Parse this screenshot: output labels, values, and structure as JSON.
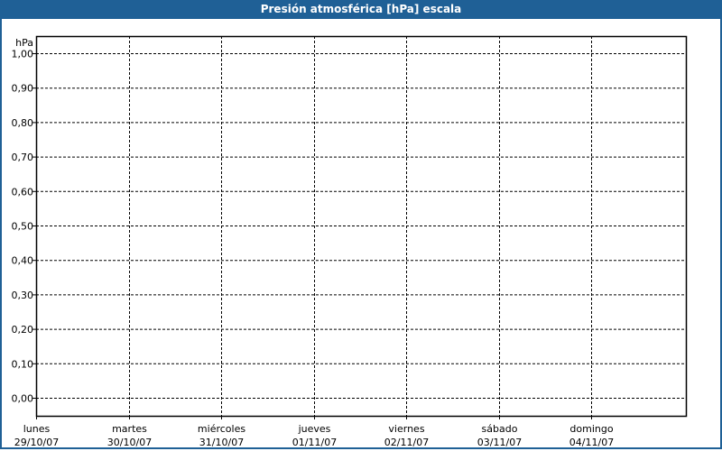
{
  "window": {
    "title": "Presión atmosférica [hPa] escala"
  },
  "chart_data": {
    "type": "line",
    "title": "Presión atmosférica [hPa] escala",
    "ylabel": "hPa",
    "ylim": [
      0,
      1
    ],
    "yticks": [
      "0,00",
      "0,10",
      "0,20",
      "0,30",
      "0,40",
      "0,50",
      "0,60",
      "0,70",
      "0,80",
      "0,90",
      "1,00"
    ],
    "categories": [
      {
        "day": "lunes",
        "date": "29/10/07"
      },
      {
        "day": "martes",
        "date": "30/10/07"
      },
      {
        "day": "miércoles",
        "date": "31/10/07"
      },
      {
        "day": "jueves",
        "date": "01/11/07"
      },
      {
        "day": "viernes",
        "date": "02/11/07"
      },
      {
        "day": "sábado",
        "date": "03/11/07"
      },
      {
        "day": "domingo",
        "date": "04/11/07"
      }
    ],
    "series": [],
    "grid": true,
    "colors": {
      "titlebar": "#1f6096",
      "grid": "#000000"
    }
  }
}
